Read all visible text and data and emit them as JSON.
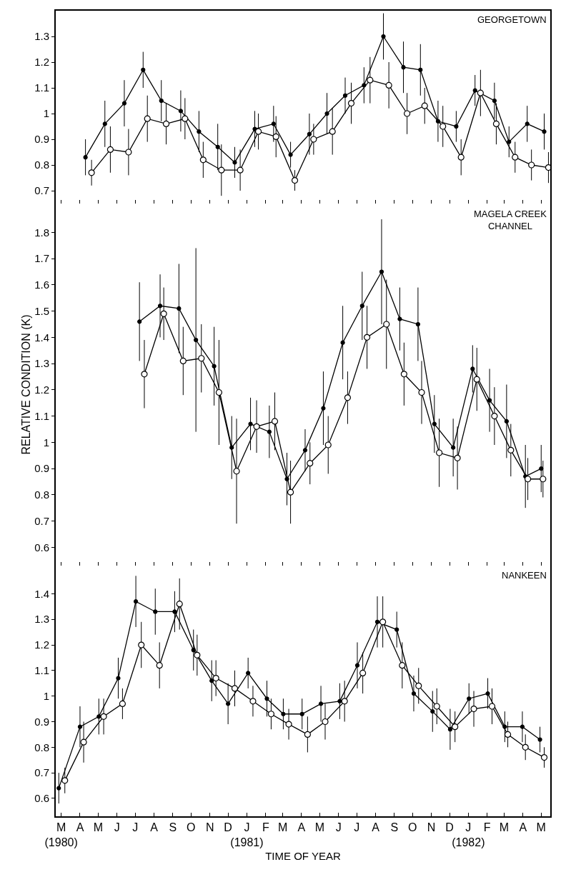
{
  "chart_data": [
    {
      "type": "line",
      "title": "GEORGETOWN",
      "xlim": [
        "1980-03-06",
        "1982-05-30"
      ],
      "ylim": [
        0.65,
        1.4
      ],
      "yticks": [
        0.7,
        0.8,
        0.9,
        1.0,
        1.1,
        1.2,
        1.3
      ],
      "tick_labels": "y",
      "marker": "circle",
      "line_style": "solid",
      "xticks": [
        {
          "value": "1980-03-15",
          "label": null
        },
        {
          "value": "1980-04-15",
          "label": null
        },
        {
          "value": "1980-05-15",
          "label": null
        },
        {
          "value": "1980-06-15",
          "label": null
        },
        {
          "value": "1980-07-15",
          "label": null
        },
        {
          "value": "1980-08-15",
          "label": null
        },
        {
          "value": "1980-09-15",
          "label": null
        },
        {
          "value": "1980-10-15",
          "label": null
        },
        {
          "value": "1980-11-15",
          "label": null
        },
        {
          "value": "1980-12-15",
          "label": null
        },
        {
          "value": "1981-01-15",
          "label": null
        },
        {
          "value": "1981-02-15",
          "label": null
        },
        {
          "value": "1981-03-15",
          "label": null
        },
        {
          "value": "1981-04-15",
          "label": null
        },
        {
          "value": "1981-05-15",
          "label": null
        },
        {
          "value": "1981-06-15",
          "label": null
        },
        {
          "value": "1981-07-15",
          "label": null
        },
        {
          "value": "1981-08-15",
          "label": null
        },
        {
          "value": "1981-09-15",
          "label": null
        },
        {
          "value": "1981-10-15",
          "label": null
        },
        {
          "value": "1981-11-15",
          "label": null
        },
        {
          "value": "1981-12-15",
          "label": null
        },
        {
          "value": "1982-01-15",
          "label": null
        },
        {
          "value": "1982-02-15",
          "label": null
        },
        {
          "value": "1982-03-15",
          "label": null
        },
        {
          "value": "1982-04-15",
          "label": null
        },
        {
          "value": "1982-05-15",
          "label": null
        }
      ],
      "series": [
        {
          "color": "#000000",
          "x": [
            "1980-04-24",
            "1980-05-26",
            "1980-06-27",
            "1980-07-28",
            "1980-08-27",
            "1980-09-28",
            "1980-10-28",
            "1980-11-28",
            "1980-12-26",
            "1981-01-28",
            "1981-02-28",
            "1981-03-28",
            "1981-04-28",
            "1981-05-27",
            "1981-06-26",
            "1981-07-27",
            "1981-08-28",
            "1981-09-30",
            "1981-10-28",
            "1981-11-26",
            "1981-12-26",
            "1982-01-26",
            "1982-02-27",
            "1982-03-23",
            "1982-04-22",
            "1982-05-20"
          ],
          "values": [
            0.83,
            0.96,
            1.04,
            1.17,
            1.05,
            1.01,
            0.93,
            0.87,
            0.81,
            0.94,
            0.96,
            0.84,
            0.92,
            1.0,
            1.07,
            1.11,
            1.3,
            1.18,
            1.17,
            0.97,
            0.95,
            1.09,
            1.05,
            0.89,
            0.96,
            0.93
          ],
          "errors": [
            0.07,
            0.09,
            0.09,
            0.07,
            0.08,
            0.08,
            0.08,
            0.09,
            0.06,
            0.07,
            0.07,
            0.05,
            0.08,
            0.08,
            0.07,
            0.07,
            0.09,
            0.1,
            0.1,
            0.08,
            0.06,
            0.06,
            0.07,
            0.06,
            0.07,
            0.07
          ]
        },
        {
          "color": "#000000",
          "x": [
            "1980-05-04",
            "1980-06-04",
            "1980-07-04",
            "1980-08-04",
            "1980-09-04",
            "1980-10-05",
            "1980-11-04",
            "1980-12-04",
            "1981-01-04",
            "1981-02-03",
            "1981-03-04",
            "1981-04-04",
            "1981-05-05",
            "1981-06-05",
            "1981-07-06",
            "1981-08-06",
            "1981-09-06",
            "1981-10-06",
            "1981-11-04",
            "1981-12-04",
            "1982-01-03",
            "1982-02-04",
            "1982-03-02",
            "1982-04-02",
            "1982-04-29",
            "1982-05-27"
          ],
          "values": [
            0.77,
            0.86,
            0.85,
            0.98,
            0.96,
            0.98,
            0.82,
            0.78,
            0.78,
            0.93,
            0.91,
            0.74,
            0.9,
            0.93,
            1.04,
            1.13,
            1.11,
            1.0,
            1.03,
            0.95,
            0.83,
            1.08,
            0.96,
            0.83,
            0.8,
            0.79
          ],
          "errors": [
            0.05,
            0.09,
            0.09,
            0.09,
            0.08,
            0.08,
            0.07,
            0.1,
            0.08,
            0.07,
            0.08,
            0.04,
            0.06,
            0.09,
            0.08,
            0.09,
            0.09,
            0.08,
            0.07,
            0.08,
            0.07,
            0.09,
            0.08,
            0.06,
            0.06,
            0.06
          ]
        }
      ]
    },
    {
      "type": "line",
      "title": "MAGELA CREEK\nCHANNEL",
      "ylabel": "RELATIVE CONDITION (K)",
      "xlim": [
        "1980-03-06",
        "1982-05-30"
      ],
      "ylim": [
        0.53,
        1.91
      ],
      "yticks": [
        0.6,
        0.7,
        0.8,
        0.9,
        1.0,
        1.1,
        1.2,
        1.3,
        1.4,
        1.5,
        1.6,
        1.7,
        1.8
      ],
      "tick_labels": "y",
      "marker": "circle",
      "line_style": "solid",
      "xticks": [
        {
          "value": "1980-03-15",
          "label": null
        },
        {
          "value": "1980-04-15",
          "label": null
        },
        {
          "value": "1980-05-15",
          "label": null
        },
        {
          "value": "1980-06-15",
          "label": null
        },
        {
          "value": "1980-07-15",
          "label": null
        },
        {
          "value": "1980-08-15",
          "label": null
        },
        {
          "value": "1980-09-15",
          "label": null
        },
        {
          "value": "1980-10-15",
          "label": null
        },
        {
          "value": "1980-11-15",
          "label": null
        },
        {
          "value": "1980-12-15",
          "label": null
        },
        {
          "value": "1981-01-15",
          "label": null
        },
        {
          "value": "1981-02-15",
          "label": null
        },
        {
          "value": "1981-03-15",
          "label": null
        },
        {
          "value": "1981-04-15",
          "label": null
        },
        {
          "value": "1981-05-15",
          "label": null
        },
        {
          "value": "1981-06-15",
          "label": null
        },
        {
          "value": "1981-07-15",
          "label": null
        },
        {
          "value": "1981-08-15",
          "label": null
        },
        {
          "value": "1981-09-15",
          "label": null
        },
        {
          "value": "1981-10-15",
          "label": null
        },
        {
          "value": "1981-11-15",
          "label": null
        },
        {
          "value": "1981-12-15",
          "label": null
        },
        {
          "value": "1982-01-15",
          "label": null
        },
        {
          "value": "1982-02-15",
          "label": null
        },
        {
          "value": "1982-03-15",
          "label": null
        },
        {
          "value": "1982-04-15",
          "label": null
        },
        {
          "value": "1982-05-15",
          "label": null
        }
      ],
      "series": [
        {
          "color": "#000000",
          "x": [
            "1980-07-22",
            "1980-08-25",
            "1980-09-25",
            "1980-10-23",
            "1980-11-22",
            "1980-12-21",
            "1981-01-21",
            "1981-02-21",
            "1981-03-22",
            "1981-04-21",
            "1981-05-21",
            "1981-06-22",
            "1981-07-24",
            "1981-08-25",
            "1981-09-24",
            "1981-10-24",
            "1981-11-20",
            "1981-12-21",
            "1982-01-22",
            "1982-02-19",
            "1982-03-19",
            "1982-04-19",
            "1982-05-15"
          ],
          "values": [
            1.46,
            1.52,
            1.51,
            1.39,
            1.29,
            0.98,
            1.07,
            1.04,
            0.86,
            0.97,
            1.13,
            1.38,
            1.52,
            1.65,
            1.47,
            1.45,
            1.07,
            0.98,
            1.28,
            1.16,
            1.08,
            0.87,
            0.9
          ],
          "errors": [
            0.15,
            0.12,
            0.17,
            0.35,
            0.15,
            0.12,
            0.1,
            0.1,
            0.1,
            0.08,
            0.14,
            0.14,
            0.13,
            0.2,
            0.12,
            0.14,
            0.11,
            0.11,
            0.09,
            0.12,
            0.14,
            0.12,
            0.09
          ]
        },
        {
          "color": "#000000",
          "x": [
            "1980-07-30",
            "1980-08-31",
            "1980-10-02",
            "1980-11-01",
            "1980-11-30",
            "1980-12-29",
            "1981-01-31",
            "1981-03-02",
            "1981-03-28",
            "1981-04-29",
            "1981-05-29",
            "1981-06-30",
            "1981-08-01",
            "1981-09-02",
            "1981-10-01",
            "1981-10-30",
            "1981-11-28",
            "1981-12-28",
            "1982-01-29",
            "1982-02-27",
            "1982-03-26",
            "1982-04-23",
            "1982-05-18"
          ],
          "values": [
            1.26,
            1.49,
            1.31,
            1.32,
            1.19,
            0.89,
            1.06,
            1.08,
            0.81,
            0.92,
            0.99,
            1.17,
            1.4,
            1.45,
            1.26,
            1.19,
            0.96,
            0.94,
            1.24,
            1.1,
            0.97,
            0.86,
            0.86
          ],
          "errors": [
            0.13,
            0.1,
            0.13,
            0.13,
            0.2,
            0.2,
            0.1,
            0.11,
            0.12,
            0.08,
            0.11,
            0.1,
            0.12,
            0.17,
            0.12,
            0.12,
            0.13,
            0.12,
            0.12,
            0.11,
            0.1,
            0.08,
            0.07
          ]
        }
      ]
    },
    {
      "type": "line",
      "title": "NANKEEN",
      "xlabel": "TIME OF YEAR",
      "xlim": [
        "1980-03-06",
        "1982-05-30"
      ],
      "ylim": [
        0.53,
        1.51
      ],
      "yticks": [
        0.6,
        0.7,
        0.8,
        0.9,
        1.0,
        1.1,
        1.2,
        1.3,
        1.4
      ],
      "marker": "circle",
      "line_style": "solid",
      "xticks": [
        {
          "value": "1980-03-15",
          "label": "M\n(1980)"
        },
        {
          "value": "1980-04-15",
          "label": "A"
        },
        {
          "value": "1980-05-15",
          "label": "M"
        },
        {
          "value": "1980-06-15",
          "label": "J"
        },
        {
          "value": "1980-07-15",
          "label": "J"
        },
        {
          "value": "1980-08-15",
          "label": "A"
        },
        {
          "value": "1980-09-15",
          "label": "S"
        },
        {
          "value": "1980-10-15",
          "label": "O"
        },
        {
          "value": "1980-11-15",
          "label": "N"
        },
        {
          "value": "1980-12-15",
          "label": "D"
        },
        {
          "value": "1981-01-15",
          "label": "J\n(1981)"
        },
        {
          "value": "1981-02-15",
          "label": "F"
        },
        {
          "value": "1981-03-15",
          "label": "M"
        },
        {
          "value": "1981-04-15",
          "label": "A"
        },
        {
          "value": "1981-05-15",
          "label": "M"
        },
        {
          "value": "1981-06-15",
          "label": "J"
        },
        {
          "value": "1981-07-15",
          "label": "J"
        },
        {
          "value": "1981-08-15",
          "label": "A"
        },
        {
          "value": "1981-09-15",
          "label": "S"
        },
        {
          "value": "1981-10-15",
          "label": "O"
        },
        {
          "value": "1981-11-15",
          "label": "N"
        },
        {
          "value": "1981-12-15",
          "label": "D"
        },
        {
          "value": "1982-01-15",
          "label": "J\n(1982)"
        },
        {
          "value": "1982-02-15",
          "label": "F"
        },
        {
          "value": "1982-03-15",
          "label": "M"
        },
        {
          "value": "1982-04-15",
          "label": "A"
        },
        {
          "value": "1982-05-15",
          "label": "M"
        }
      ],
      "series": [
        {
          "color": "#000000",
          "x": [
            "1980-03-11",
            "1980-04-15",
            "1980-05-16",
            "1980-06-17",
            "1980-07-16",
            "1980-08-17",
            "1980-09-18",
            "1980-10-19",
            "1980-11-18",
            "1980-12-15",
            "1981-01-17",
            "1981-02-17",
            "1981-03-16",
            "1981-04-16",
            "1981-05-17",
            "1981-06-17",
            "1981-07-16",
            "1981-08-18",
            "1981-09-19",
            "1981-10-17",
            "1981-11-17",
            "1981-12-16",
            "1982-01-16",
            "1982-02-16",
            "1982-03-16",
            "1982-04-14",
            "1982-05-13"
          ],
          "values": [
            0.64,
            0.88,
            0.92,
            1.07,
            1.37,
            1.33,
            1.33,
            1.18,
            1.06,
            0.97,
            1.09,
            0.99,
            0.93,
            0.93,
            0.97,
            0.98,
            1.12,
            1.29,
            1.26,
            1.01,
            0.94,
            0.87,
            0.99,
            1.01,
            0.88,
            0.88,
            0.83
          ],
          "errors": [
            0.06,
            0.08,
            0.07,
            0.08,
            0.1,
            0.09,
            0.08,
            0.08,
            0.08,
            0.08,
            0.06,
            0.07,
            0.06,
            0.06,
            0.07,
            0.07,
            0.09,
            0.1,
            0.07,
            0.07,
            0.08,
            0.08,
            0.06,
            0.06,
            0.06,
            0.06,
            0.05
          ]
        },
        {
          "color": "#000000",
          "x": [
            "1980-03-21",
            "1980-04-21",
            "1980-05-24",
            "1980-06-24",
            "1980-07-25",
            "1980-08-24",
            "1980-09-26",
            "1980-10-25",
            "1980-11-25",
            "1980-12-26",
            "1981-01-25",
            "1981-02-24",
            "1981-03-25",
            "1981-04-25",
            "1981-05-24",
            "1981-06-25",
            "1981-07-25",
            "1981-08-27",
            "1981-09-28",
            "1981-10-25",
            "1981-11-24",
            "1981-12-24",
            "1982-01-24",
            "1982-02-23",
            "1982-03-21",
            "1982-04-19",
            "1982-05-20"
          ],
          "values": [
            0.67,
            0.82,
            0.92,
            0.97,
            1.2,
            1.12,
            1.36,
            1.16,
            1.07,
            1.03,
            0.98,
            0.93,
            0.89,
            0.85,
            0.9,
            0.98,
            1.09,
            1.29,
            1.12,
            1.04,
            0.96,
            0.88,
            0.95,
            0.96,
            0.85,
            0.8,
            0.76
          ],
          "errors": [
            0.05,
            0.08,
            0.07,
            0.06,
            0.09,
            0.09,
            0.1,
            0.08,
            0.07,
            0.07,
            0.06,
            0.06,
            0.06,
            0.07,
            0.07,
            0.08,
            0.08,
            0.1,
            0.09,
            0.07,
            0.07,
            0.06,
            0.07,
            0.07,
            0.05,
            0.05,
            0.04
          ]
        }
      ]
    }
  ]
}
